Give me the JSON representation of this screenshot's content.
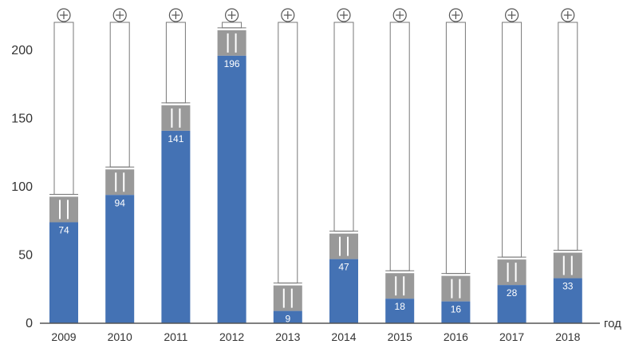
{
  "chart_data": {
    "type": "bar",
    "categories": [
      "2009",
      "2010",
      "2011",
      "2012",
      "2013",
      "2014",
      "2015",
      "2016",
      "2017",
      "2018"
    ],
    "values": [
      74,
      94,
      141,
      196,
      9,
      47,
      18,
      16,
      28,
      33
    ],
    "xlabel": "год",
    "ylabel": "",
    "ylim": [
      0,
      225
    ],
    "yticks": [
      0,
      50,
      100,
      150,
      200
    ],
    "grid": false,
    "bar_color": "#4472b4",
    "battery_color": "#999999",
    "style": "battery-shaped bars"
  }
}
